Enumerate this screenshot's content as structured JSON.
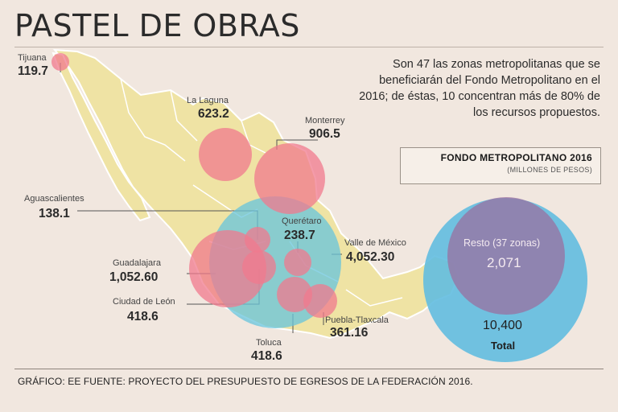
{
  "header": {
    "title": "PASTEL DE OBRAS",
    "intro": "Son 47 las zonas metropolitanas que se beneficiarán del Fondo Metropolitano en el 2016; de éstas, 10 concentran más de 80% de los recursos propuestos."
  },
  "legend_box": {
    "title": "FONDO METROPOLITANO 2016",
    "subtitle": "(MILLONES DE PESOS)"
  },
  "source": "GRÁFICO: EE  FUENTE: PROYECTO DEL PRESUPUESTO DE EGRESOS DE LA FEDERACIÓN 2016.",
  "colors": {
    "background": "#f1e7df",
    "map_fill": "#efe3a4",
    "zone_bubble": "#f07a8e",
    "valle_bubble": "#67c4dc",
    "resto_bubble": "#9a6fa0",
    "total_bubble": "#62bde0"
  },
  "chart_data": {
    "type": "bubble",
    "title": "PASTEL DE OBRAS",
    "units": "millones de pesos",
    "zones": [
      {
        "name": "Tijuana",
        "value": "119.7"
      },
      {
        "name": "La Laguna",
        "value": "623.2"
      },
      {
        "name": "Monterrey",
        "value": "906.5"
      },
      {
        "name": "Aguascalientes",
        "value": "138.1"
      },
      {
        "name": "Querétaro",
        "value": "238.7"
      },
      {
        "name": "Valle de México",
        "value": "4,052.30"
      },
      {
        "name": "Guadalajara",
        "value": "1,052.60"
      },
      {
        "name": "Ciudad de León",
        "value": "418.6"
      },
      {
        "name": "Puebla-Tlaxcala",
        "value": "361.16"
      },
      {
        "name": "Toluca",
        "value": "418.6"
      }
    ],
    "resto": {
      "label": "Resto (37 zonas)",
      "value": "2,071"
    },
    "total": {
      "label": "Total",
      "value": "10,400"
    }
  }
}
